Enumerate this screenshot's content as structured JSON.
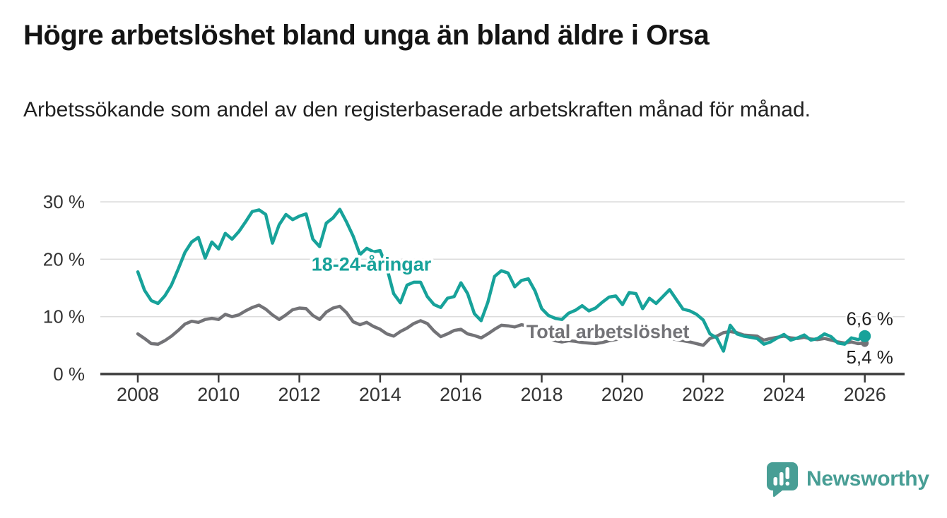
{
  "header": {
    "title": "Högre arbetslöshet bland unga än bland äldre i Orsa",
    "subtitle": "Arbetssökande som andel av den registerbaserade arbetskraften månad för månad."
  },
  "footer": {
    "brand": "Newsworthy",
    "brand_color": "#489e95",
    "logo_icon": "bar-chart-speech-bubble"
  },
  "chart_data": {
    "type": "line",
    "title": "",
    "xlabel": "",
    "ylabel": "",
    "x_unit": "year (monthly data, 2-month sampling)",
    "x_start": 2008,
    "x_step": 0.1666667,
    "x_ticks": [
      2008,
      2010,
      2012,
      2014,
      2016,
      2018,
      2020,
      2022,
      2024,
      2026
    ],
    "xlim": [
      2007.07,
      2027.0
    ],
    "ylim": [
      0,
      30
    ],
    "y_ticks": [
      0,
      10,
      20,
      30
    ],
    "y_tick_suffix": " %",
    "grid": "horizontal",
    "legend_position": "inline-labels",
    "colors": {
      "grid": "#dcdcdc",
      "axis_line": "#3b3b3b",
      "axis_text": "#333333",
      "value_label_text": "#1f1f1f"
    },
    "series": [
      {
        "name": "18-24-åringar",
        "color": "#17a29a",
        "label_pos": {
          "x": 2012.3,
          "y": 19.1
        },
        "end_value": 6.6,
        "end_value_label": "6,6 %",
        "value_label_dy": -16,
        "end_dot_radius": 8.5,
        "values": [
          17.8,
          14.6,
          12.8,
          12.3,
          13.6,
          15.5,
          18.3,
          21.2,
          23.0,
          23.8,
          20.2,
          23.0,
          21.8,
          24.5,
          23.5,
          24.8,
          26.5,
          28.3,
          28.6,
          27.8,
          22.8,
          26.0,
          27.8,
          26.9,
          27.5,
          27.9,
          23.5,
          22.2,
          26.3,
          27.2,
          28.7,
          26.5,
          24.0,
          20.8,
          21.9,
          21.3,
          21.5,
          18.5,
          14.0,
          12.4,
          15.5,
          16.0,
          16.0,
          13.5,
          12.1,
          11.6,
          13.2,
          13.5,
          15.9,
          14.0,
          10.5,
          9.3,
          12.5,
          17.0,
          18.0,
          17.6,
          15.2,
          16.3,
          16.6,
          14.5,
          11.4,
          10.2,
          9.7,
          9.5,
          10.6,
          11.1,
          11.9,
          11.0,
          11.5,
          12.5,
          13.4,
          13.6,
          12.1,
          14.2,
          14.0,
          11.4,
          13.2,
          12.3,
          13.5,
          14.7,
          13.0,
          11.3,
          11.0,
          10.4,
          9.4,
          7.0,
          6.3,
          4.0,
          8.5,
          7.0,
          6.6,
          6.4,
          6.2,
          5.2,
          5.6,
          6.3,
          6.9,
          5.9,
          6.3,
          6.8,
          5.9,
          6.2,
          7.0,
          6.5,
          5.4,
          5.2,
          6.3,
          6.0,
          6.6
        ]
      },
      {
        "name": "Total arbetslöshet",
        "color": "#737377",
        "label_pos": {
          "x": 2017.62,
          "y": 7.4
        },
        "end_value": 5.4,
        "end_value_label": "5,4 %",
        "value_label_dy": 29,
        "end_dot_radius": 5.5,
        "values": [
          7.0,
          6.2,
          5.3,
          5.2,
          5.8,
          6.6,
          7.6,
          8.7,
          9.2,
          9.0,
          9.5,
          9.7,
          9.5,
          10.4,
          10.0,
          10.3,
          11.0,
          11.6,
          12.0,
          11.3,
          10.3,
          9.5,
          10.3,
          11.2,
          11.5,
          11.4,
          10.2,
          9.5,
          10.8,
          11.5,
          11.8,
          10.7,
          9.1,
          8.6,
          9.0,
          8.3,
          7.8,
          7.0,
          6.6,
          7.4,
          8.0,
          8.8,
          9.3,
          8.8,
          7.5,
          6.5,
          7.0,
          7.6,
          7.8,
          7.0,
          6.7,
          6.3,
          7.0,
          7.8,
          8.5,
          8.4,
          8.2,
          8.6,
          8.3,
          7.6,
          7.0,
          6.3,
          5.8,
          5.6,
          5.8,
          5.7,
          5.5,
          5.4,
          5.3,
          5.5,
          5.8,
          6.0,
          6.2,
          6.8,
          7.2,
          7.0,
          6.8,
          6.6,
          6.5,
          6.3,
          6.0,
          5.8,
          5.6,
          5.3,
          5.0,
          6.2,
          6.6,
          7.2,
          7.4,
          7.2,
          6.8,
          6.7,
          6.6,
          5.9,
          6.2,
          6.4,
          6.6,
          6.3,
          6.2,
          6.4,
          6.1,
          6.0,
          6.2,
          5.9,
          5.6,
          5.4,
          5.6,
          5.3,
          5.4
        ]
      }
    ]
  }
}
